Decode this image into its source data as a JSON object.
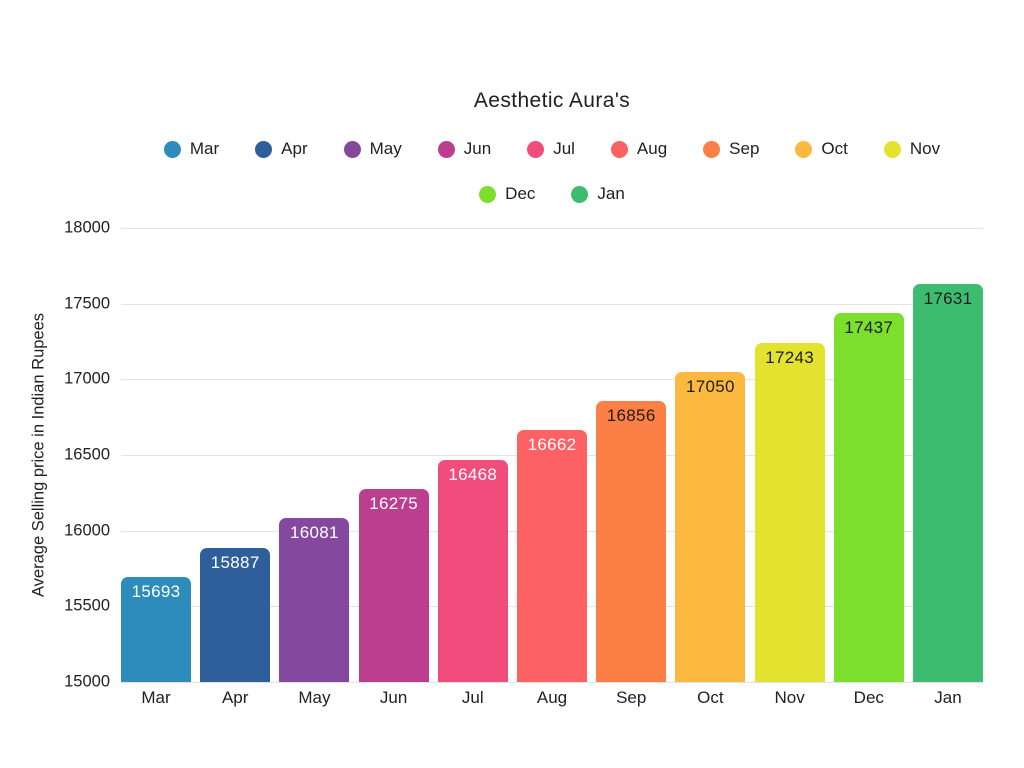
{
  "chart_data": {
    "type": "bar",
    "title": "Aesthetic Aura's",
    "xlabel": "",
    "ylabel": "Average Selling price in Indian Rupees",
    "ylim": [
      15000,
      18000
    ],
    "ytick_step": 500,
    "grid": true,
    "legend_position": "top-center",
    "legend_rows": [
      9,
      2
    ],
    "categories": [
      "Mar",
      "Apr",
      "May",
      "Jun",
      "Jul",
      "Aug",
      "Sep",
      "Oct",
      "Nov",
      "Dec",
      "Jan"
    ],
    "values": [
      15693,
      15887,
      16081,
      16275,
      16468,
      16662,
      16856,
      17050,
      17243,
      17437,
      17631
    ],
    "bar_colors": [
      "#2E8CBD",
      "#2F5F9A",
      "#85489F",
      "#BC3E8F",
      "#F04D7D",
      "#FC6164",
      "#FC7F45",
      "#FCB940",
      "#E3E22F",
      "#7CDE2D",
      "#3DBC70"
    ],
    "value_label_colors": [
      "#FFFFFF",
      "#FFFFFF",
      "#FFFFFF",
      "#FFFFFF",
      "#FFFFFF",
      "#FFFFFF",
      "#1E1E1E",
      "#1E1E1E",
      "#1E1E1E",
      "#1E1E1E",
      "#1E1E1E"
    ],
    "text_color": "#212121",
    "grid_color": "#E3E3E3"
  }
}
